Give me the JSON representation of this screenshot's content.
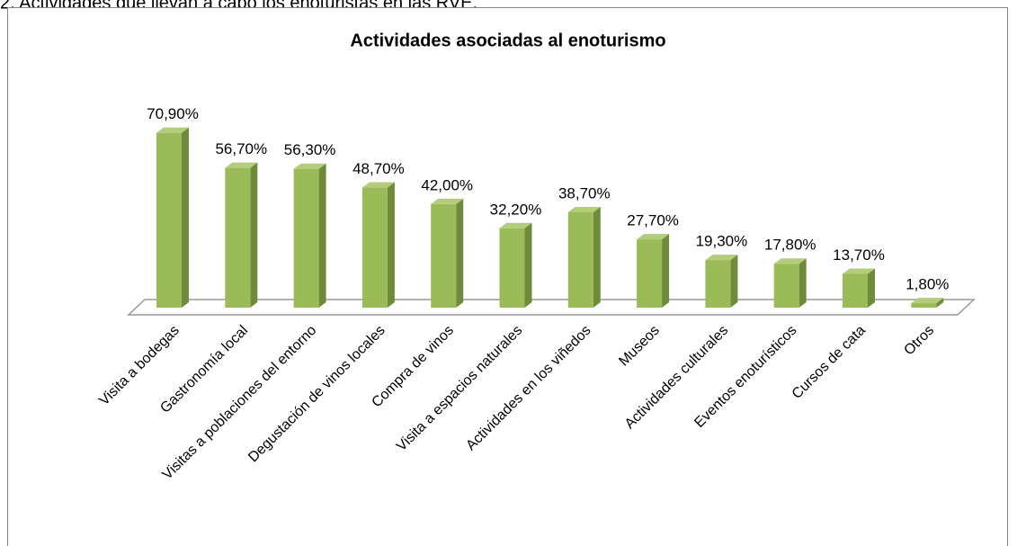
{
  "caption": "2. Actividades que llevan a cabo los enoturistas en las RVE.",
  "chart_data": {
    "type": "bar3d",
    "title": "Actividades asociadas al enoturismo",
    "categories": [
      "Visita a bodegas",
      "Gastronomía local",
      "Visitas a poblaciones del entorno",
      "Degustación de vinos locales",
      "Compra de vinos",
      "Visita a espacios naturales",
      "Actividades en los viñedos",
      "Museos",
      "Actividades culturales",
      "Eventos enoturísticos",
      "Cursos de cata",
      "Otros"
    ],
    "values": [
      70.9,
      56.7,
      56.3,
      48.7,
      42.0,
      32.2,
      38.7,
      27.7,
      19.3,
      17.8,
      13.7,
      1.8
    ],
    "value_labels": [
      "70,90%",
      "56,70%",
      "56,30%",
      "48,70%",
      "42,00%",
      "32,20%",
      "38,70%",
      "27,70%",
      "19,30%",
      "17,80%",
      "13,70%",
      "1,80%"
    ],
    "color": "#9bbb59"
  }
}
